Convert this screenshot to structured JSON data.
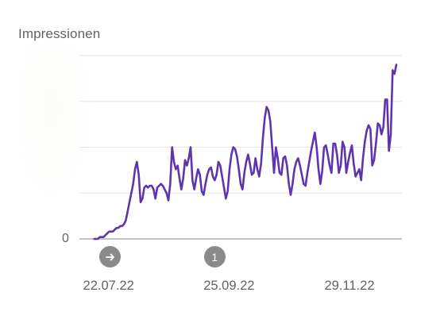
{
  "chart_data": {
    "type": "line",
    "ylabel": "Impressionen",
    "y_tick_labels": [
      "0"
    ],
    "x_tick_labels": [
      "22.07.22",
      "25.09.22",
      "29.11.22"
    ],
    "x_range": [
      "2022-07-14",
      "2023-01-04"
    ],
    "y_range_relative": [
      0,
      1
    ],
    "grid": true,
    "line_color": "#5e35b1",
    "series": [
      {
        "x_start": "2022-07-22",
        "x_step_days": 1,
        "values": [
          0.0,
          0.0,
          0.0,
          0.01,
          0.01,
          0.01,
          0.02,
          0.03,
          0.04,
          0.04,
          0.04,
          0.05,
          0.06,
          0.06,
          0.07,
          0.07,
          0.08,
          0.1,
          0.15,
          0.2,
          0.25,
          0.3,
          0.38,
          0.42,
          0.35,
          0.2,
          0.22,
          0.28,
          0.29,
          0.28,
          0.29,
          0.29,
          0.27,
          0.22,
          0.28,
          0.29,
          0.3,
          0.29,
          0.27,
          0.25,
          0.21,
          0.3,
          0.5,
          0.42,
          0.38,
          0.4,
          0.33,
          0.27,
          0.33,
          0.43,
          0.4,
          0.44,
          0.5,
          0.32,
          0.27,
          0.33,
          0.38,
          0.35,
          0.26,
          0.24,
          0.3,
          0.35,
          0.38,
          0.39,
          0.34,
          0.32,
          0.35,
          0.42,
          0.4,
          0.34,
          0.28,
          0.22,
          0.26,
          0.38,
          0.46,
          0.5,
          0.49,
          0.45,
          0.38,
          0.3,
          0.27,
          0.36,
          0.42,
          0.46,
          0.41,
          0.35,
          0.36,
          0.44,
          0.38,
          0.34,
          0.41,
          0.55,
          0.66,
          0.72,
          0.7,
          0.64,
          0.5,
          0.36,
          0.5,
          0.44,
          0.36,
          0.35,
          0.44,
          0.45,
          0.4,
          0.3,
          0.24,
          0.3,
          0.38,
          0.42,
          0.44,
          0.4,
          0.35,
          0.3,
          0.29,
          0.36,
          0.42,
          0.48,
          0.53,
          0.58,
          0.5,
          0.38,
          0.3,
          0.37,
          0.5,
          0.51,
          0.46,
          0.4,
          0.36,
          0.52,
          0.52,
          0.46,
          0.36,
          0.4,
          0.53,
          0.5,
          0.36,
          0.42,
          0.47,
          0.51,
          0.41,
          0.34,
          0.36,
          0.38,
          0.32,
          0.44,
          0.53,
          0.59,
          0.62,
          0.6,
          0.4,
          0.43,
          0.52,
          0.63,
          0.62,
          0.57,
          0.61,
          0.76,
          0.76,
          0.48,
          0.57,
          0.92,
          0.9,
          0.95
        ]
      }
    ],
    "markers": [
      {
        "date": "2022-07-22",
        "icon": "arrow-right-icon",
        "label": ""
      },
      {
        "date": "2022-09-25",
        "icon": "annotation-count",
        "label": "1"
      }
    ]
  }
}
